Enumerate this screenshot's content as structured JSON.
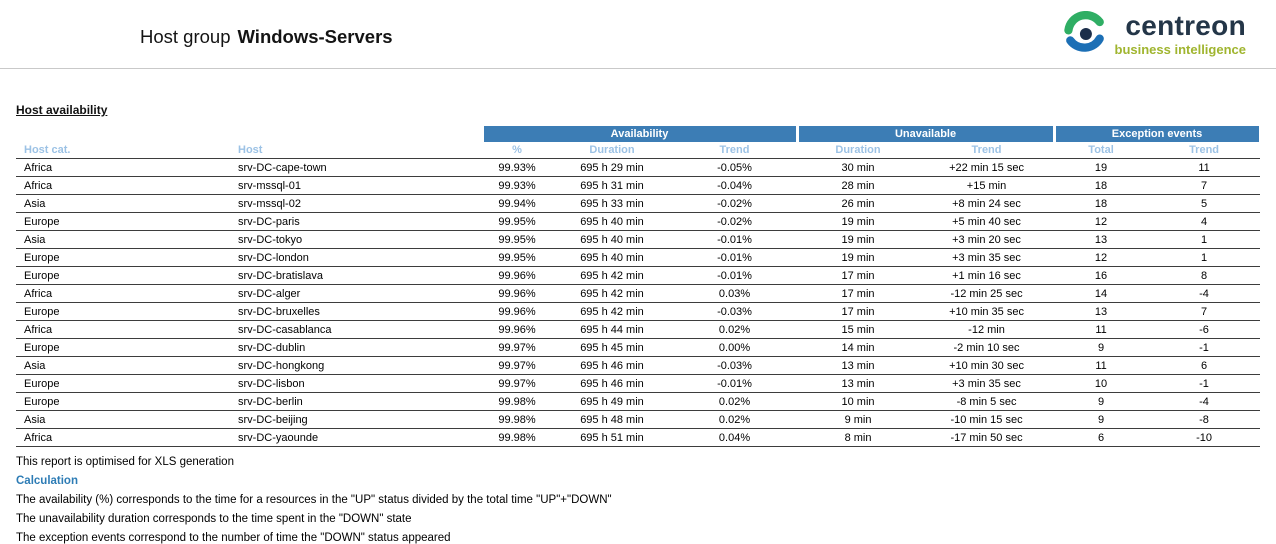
{
  "header": {
    "title_prefix": "Host group",
    "title_name": "Windows-Servers",
    "logo": {
      "name": "centreon",
      "subtitle": "business intelligence"
    }
  },
  "section_title": "Host availability",
  "colors": {
    "group_header_bg": "#3c7db5",
    "subheader_text": "#9cc2e5",
    "calculation_label": "#2d7cb5",
    "logo_navy": "#243648",
    "logo_green": "#a0b52f"
  },
  "table": {
    "group_headers": [
      {
        "label": "Availability",
        "span": 3
      },
      {
        "label": "Unavailable",
        "span": 2
      },
      {
        "label": "Exception events",
        "span": 2
      }
    ],
    "columns": [
      "Host cat.",
      "Host",
      "%",
      "Duration",
      "Trend",
      "Duration",
      "Trend",
      "Total",
      "Trend"
    ],
    "rows": [
      [
        "Africa",
        "srv-DC-cape-town",
        "99.93%",
        "695 h 29 min",
        "-0.05%",
        "30 min",
        "+22 min 15 sec",
        "19",
        "11"
      ],
      [
        "Africa",
        "srv-mssql-01",
        "99.93%",
        "695 h 31 min",
        "-0.04%",
        "28 min",
        "+15 min",
        "18",
        "7"
      ],
      [
        "Asia",
        "srv-mssql-02",
        "99.94%",
        "695 h 33 min",
        "-0.02%",
        "26 min",
        "+8 min 24 sec",
        "18",
        "5"
      ],
      [
        "Europe",
        "srv-DC-paris",
        "99.95%",
        "695 h 40 min",
        "-0.02%",
        "19 min",
        "+5 min 40 sec",
        "12",
        "4"
      ],
      [
        "Asia",
        "srv-DC-tokyo",
        "99.95%",
        "695 h 40 min",
        "-0.01%",
        "19 min",
        "+3 min 20 sec",
        "13",
        "1"
      ],
      [
        "Europe",
        "srv-DC-london",
        "99.95%",
        "695 h 40 min",
        "-0.01%",
        "19 min",
        "+3 min 35 sec",
        "12",
        "1"
      ],
      [
        "Europe",
        "srv-DC-bratislava",
        "99.96%",
        "695 h 42 min",
        "-0.01%",
        "17 min",
        "+1 min 16 sec",
        "16",
        "8"
      ],
      [
        "Africa",
        "srv-DC-alger",
        "99.96%",
        "695 h 42 min",
        "0.03%",
        "17 min",
        "-12 min 25 sec",
        "14",
        "-4"
      ],
      [
        "Europe",
        "srv-DC-bruxelles",
        "99.96%",
        "695 h 42 min",
        "-0.03%",
        "17 min",
        "+10 min 35 sec",
        "13",
        "7"
      ],
      [
        "Africa",
        "srv-DC-casablanca",
        "99.96%",
        "695 h 44 min",
        "0.02%",
        "15 min",
        "-12 min",
        "11",
        "-6"
      ],
      [
        "Europe",
        "srv-DC-dublin",
        "99.97%",
        "695 h 45 min",
        "0.00%",
        "14 min",
        "-2 min 10 sec",
        "9",
        "-1"
      ],
      [
        "Asia",
        "srv-DC-hongkong",
        "99.97%",
        "695 h 46 min",
        "-0.03%",
        "13 min",
        "+10 min 30 sec",
        "11",
        "6"
      ],
      [
        "Europe",
        "srv-DC-lisbon",
        "99.97%",
        "695 h 46 min",
        "-0.01%",
        "13 min",
        "+3 min 35 sec",
        "10",
        "-1"
      ],
      [
        "Europe",
        "srv-DC-berlin",
        "99.98%",
        "695 h 49 min",
        "0.02%",
        "10 min",
        "-8 min 5 sec",
        "9",
        "-4"
      ],
      [
        "Asia",
        "srv-DC-beijing",
        "99.98%",
        "695 h 48 min",
        "0.02%",
        "9 min",
        "-10 min 15 sec",
        "9",
        "-8"
      ],
      [
        "Africa",
        "srv-DC-yaounde",
        "99.98%",
        "695 h 51 min",
        "0.04%",
        "8 min",
        "-17 min 50 sec",
        "6",
        "-10"
      ]
    ]
  },
  "footer": {
    "note": "This report is optimised for XLS generation",
    "calculation_label": "Calculation",
    "calc_lines": [
      "The availability (%) corresponds to the time for a resources in the \"UP\" status divided by the total time \"UP\"+\"DOWN\"",
      "The unavailability duration corresponds to the time spent in the \"DOWN\" state",
      "The exception events correspond to the number of time the \"DOWN\" status appeared"
    ]
  }
}
